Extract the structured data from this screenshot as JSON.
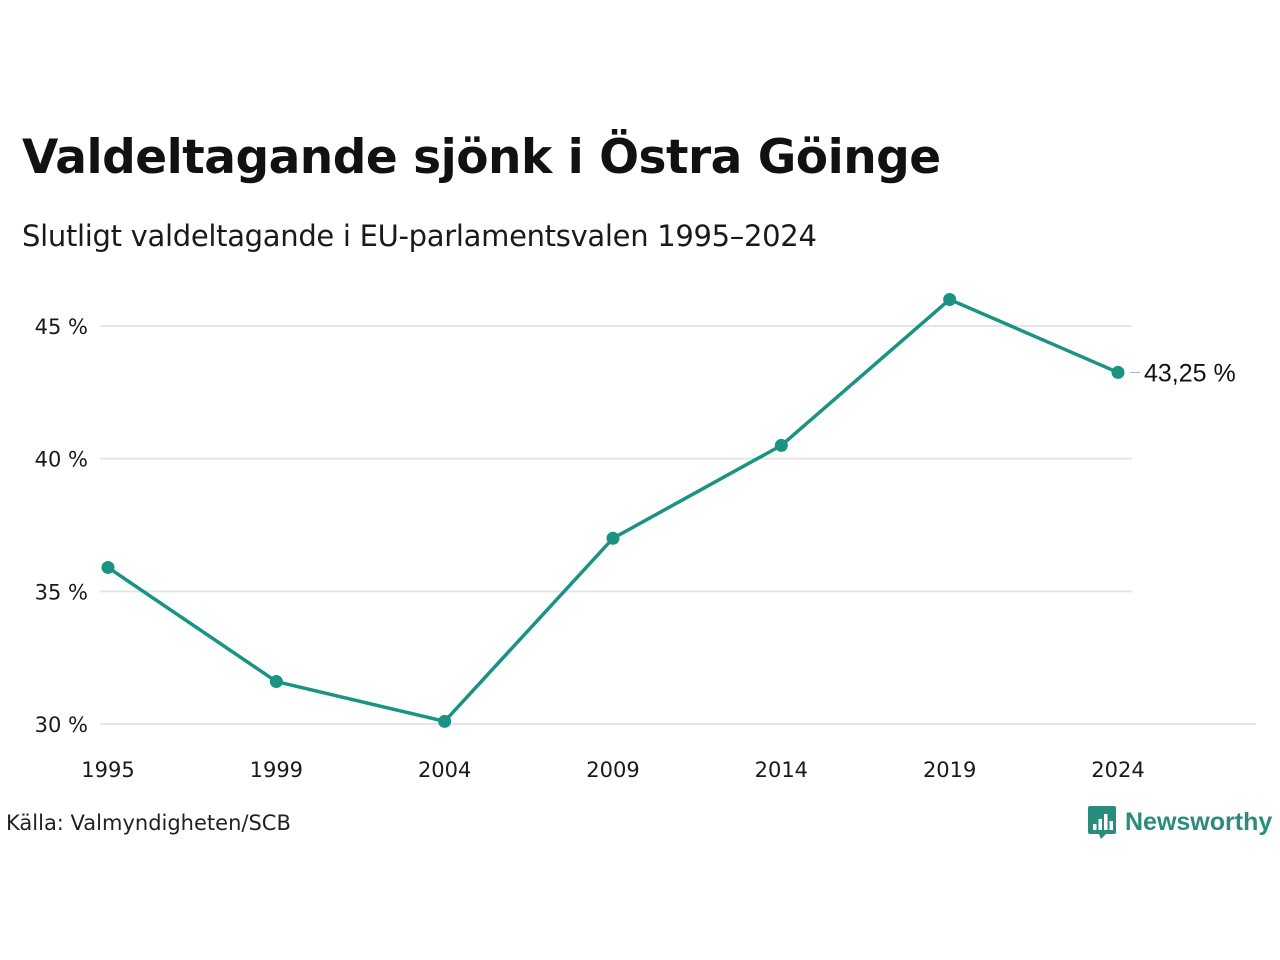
{
  "title": "Valdeltagande sjönk i Östra Göinge",
  "subtitle": "Slutligt valdeltagande i EU-parlamentsvalen 1995–2024",
  "source": "Källa: Valmyndigheten/SCB",
  "brand": {
    "name": "Newsworthy",
    "icon": "bar-chart-speech-bubble-icon",
    "color": "#2a8c7d"
  },
  "colors": {
    "line": "#1a9383",
    "grid": "#e3e5e8",
    "text": "#1a1a1a"
  },
  "chart_data": {
    "type": "line",
    "title": "Valdeltagande sjönk i Östra Göinge",
    "subtitle": "Slutligt valdeltagande i EU-parlamentsvalen 1995–2024",
    "categories": [
      "1995",
      "1999",
      "2004",
      "2009",
      "2014",
      "2019",
      "2024"
    ],
    "series": [
      {
        "values": [
          35.9,
          31.6,
          30.1,
          37.0,
          40.5,
          46.0,
          43.25
        ]
      }
    ],
    "ylim": [
      30,
      45
    ],
    "yticks": [
      30,
      35,
      40,
      45
    ],
    "ytick_labels": [
      "30 %",
      "35 %",
      "40 %",
      "45 %"
    ],
    "grid": true,
    "end_label": "43,25 %",
    "xlabel": "",
    "ylabel": ""
  }
}
